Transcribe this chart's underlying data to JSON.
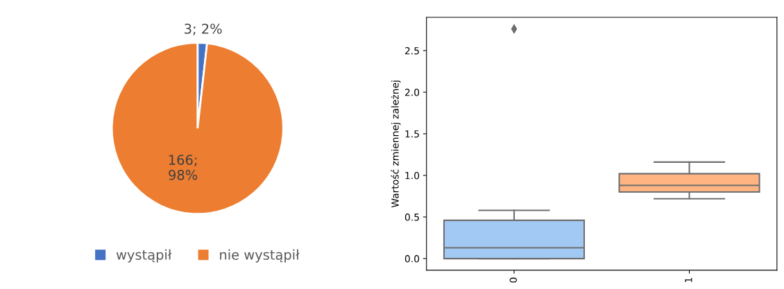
{
  "chart_data": [
    {
      "type": "pie",
      "categories": [
        "wystąpił",
        "nie wystąpił"
      ],
      "values": [
        3,
        166
      ],
      "colors": [
        "#4472c4",
        "#ed7d31"
      ],
      "value_labels": [
        "3; 2%",
        "166;\n98%"
      ],
      "legend": "bottom"
    },
    {
      "type": "box",
      "categories": [
        "0",
        "1"
      ],
      "ylabel": "Wartość zmiennej zależnej",
      "ylim": [
        -0.14,
        2.9
      ],
      "yticks": [
        {
          "value": 0,
          "label": "0.0"
        },
        0.5,
        {
          "value": 1,
          "label": "1.0"
        },
        1.5,
        {
          "value": 2,
          "label": "2.0"
        },
        2.5
      ],
      "series": [
        {
          "colors": [
            "#a1c9f4",
            "#ffb482"
          ],
          "boxes": [
            {
              "low": 0.0,
              "q1": 0.0,
              "median": 0.13,
              "q3": 0.46,
              "high": 0.58,
              "outliers": [
                2.76
              ]
            },
            {
              "low": 0.72,
              "q1": 0.8,
              "median": 0.88,
              "q3": 1.02,
              "high": 1.16
            }
          ]
        }
      ]
    }
  ]
}
